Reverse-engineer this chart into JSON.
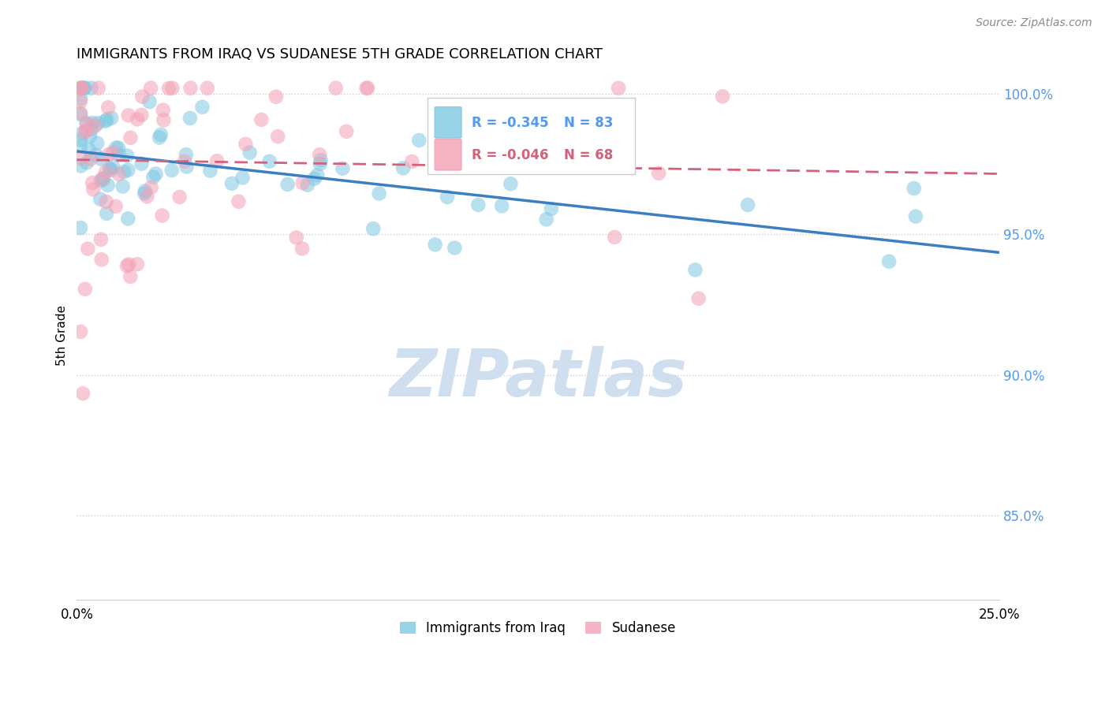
{
  "title": "IMMIGRANTS FROM IRAQ VS SUDANESE 5TH GRADE CORRELATION CHART",
  "source": "Source: ZipAtlas.com",
  "ylabel": "5th Grade",
  "xlim": [
    0.0,
    0.25
  ],
  "ylim": [
    0.82,
    1.008
  ],
  "iraq_color": "#7ec8e3",
  "iraq_edge_color": "#5ab4d6",
  "sudanese_color": "#f4a0b5",
  "sudanese_edge_color": "#e87090",
  "iraq_line_color": "#3a7fc1",
  "sudanese_line_color": "#d4607a",
  "legend_iraq_label": "Immigrants from Iraq",
  "legend_sudanese_label": "Sudanese",
  "R_iraq": -0.345,
  "N_iraq": 83,
  "R_sudanese": -0.046,
  "N_sudanese": 68,
  "iraq_line_x0": 0.0,
  "iraq_line_x1": 0.25,
  "iraq_line_y0": 0.9795,
  "iraq_line_y1": 0.9435,
  "sudanese_line_x0": 0.0,
  "sudanese_line_x1": 0.25,
  "sudanese_line_y0": 0.9765,
  "sudanese_line_y1": 0.9715,
  "watermark_text": "ZIPatlas",
  "watermark_color": "#d0dff0",
  "watermark_fontsize": 60,
  "background_color": "#ffffff",
  "grid_color": "#cccccc",
  "y_tick_vals": [
    0.85,
    0.9,
    0.95,
    1.0
  ],
  "y_tick_labels": [
    "85.0%",
    "90.0%",
    "95.0%",
    "100.0%"
  ],
  "y_tick_color": "#5599ee",
  "title_fontsize": 13,
  "source_fontsize": 10,
  "axis_label_fontsize": 11,
  "tick_fontsize": 12
}
